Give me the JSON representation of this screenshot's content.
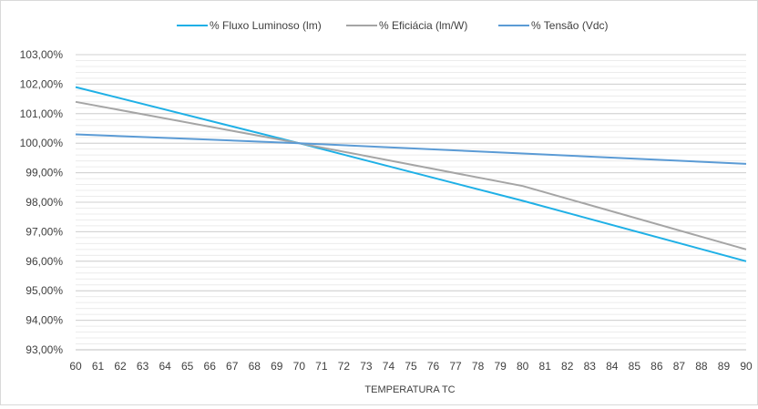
{
  "chart_data": {
    "type": "line",
    "title": "",
    "xlabel": "TEMPERATURA TC",
    "ylabel": "",
    "ylim": [
      93,
      103
    ],
    "xlim": [
      60,
      90
    ],
    "y_ticks": [
      "93,00%",
      "94,00%",
      "95,00%",
      "96,00%",
      "97,00%",
      "98,00%",
      "99,00%",
      "100,00%",
      "101,00%",
      "102,00%",
      "103,00%"
    ],
    "x_ticks": [
      "60",
      "61",
      "62",
      "63",
      "64",
      "65",
      "66",
      "67",
      "68",
      "69",
      "70",
      "71",
      "72",
      "73",
      "74",
      "75",
      "76",
      "77",
      "78",
      "79",
      "80",
      "81",
      "82",
      "83",
      "84",
      "85",
      "86",
      "87",
      "88",
      "89",
      "90"
    ],
    "grid": true,
    "legend_position": "top",
    "series": [
      {
        "name": "% Fluxo Luminoso (lm)",
        "color": "#1FB0E6",
        "x": [
          60,
          70,
          80,
          90
        ],
        "y": [
          101.9,
          100.0,
          98.05,
          96.0
        ]
      },
      {
        "name": "% Eficiácia (lm/W)",
        "color": "#A5A5A5",
        "x": [
          60,
          70,
          80,
          90
        ],
        "y": [
          101.4,
          100.0,
          98.55,
          96.4
        ]
      },
      {
        "name": "% Tensão (Vdc)",
        "color": "#5B9BD5",
        "x": [
          60,
          70,
          80,
          90
        ],
        "y": [
          100.3,
          100.0,
          99.65,
          99.3
        ]
      }
    ]
  }
}
